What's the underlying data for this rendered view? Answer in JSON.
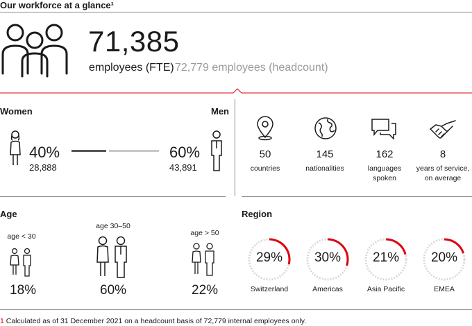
{
  "title": "Our workforce at a glance¹",
  "headline": {
    "fte_value": "71,385",
    "fte_label": "employees (FTE)",
    "headcount_label": "72,779 employees (headcount)"
  },
  "gender": {
    "women_label": "Women",
    "men_label": "Men",
    "women_pct": "40%",
    "women_count": "28,888",
    "men_pct": "60%",
    "men_count": "43,891",
    "women_share": 0.4
  },
  "stats": [
    {
      "icon": "location-pin-icon",
      "value": "50",
      "label_lines": [
        "countries"
      ]
    },
    {
      "icon": "globe-icon",
      "value": "145",
      "label_lines": [
        "nationalities"
      ]
    },
    {
      "icon": "speech-bubbles-icon",
      "value": "162",
      "label_lines": [
        "languages",
        "spoken"
      ]
    },
    {
      "icon": "handshake-icon",
      "value": "8",
      "label_lines": [
        "years of service,",
        "on average"
      ]
    }
  ],
  "age": {
    "heading": "Age",
    "groups": [
      {
        "label": "age < 30",
        "pct": "18%"
      },
      {
        "label": "age 30–50",
        "pct": "60%"
      },
      {
        "label": "age > 50",
        "pct": "22%"
      }
    ]
  },
  "region": {
    "heading": "Region",
    "items": [
      {
        "name": "Switzerland",
        "pct": "29%",
        "value": 29
      },
      {
        "name": "Americas",
        "pct": "30%",
        "value": 30
      },
      {
        "name": "Asia Pacific",
        "pct": "21%",
        "value": 21
      },
      {
        "name": "EMEA",
        "pct": "20%",
        "value": 20
      }
    ]
  },
  "footnote": {
    "marker": "1",
    "text": " Calculated as of 31 December 2021 on a headcount basis of 72,779 internal employees only."
  },
  "colors": {
    "accent": "#e0000f",
    "dark_bar": "#555555",
    "light_bar": "#c8c8c8",
    "ring": "#d9d9d9",
    "muted_text": "#9a9a9a"
  }
}
